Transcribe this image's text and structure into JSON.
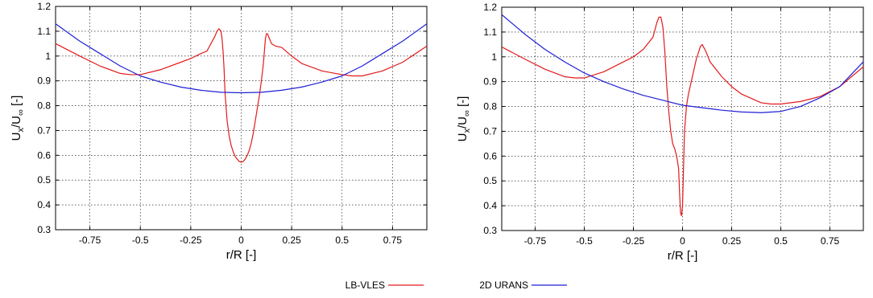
{
  "legend": [
    {
      "name": "LB-VLES",
      "color": "#e31a1c"
    },
    {
      "name": "2D URANS",
      "color": "#1f1fd6"
    }
  ],
  "chart_data": [
    {
      "type": "line",
      "xlabel": "r/R [-]",
      "ylabel_main": "U",
      "ylabel_sub1": "x",
      "ylabel_mid": "/U",
      "ylabel_sub2": "∞",
      "ylabel_tail": " [-]",
      "xlim": [
        -0.92,
        0.92
      ],
      "ylim": [
        0.3,
        1.2
      ],
      "xticks": [
        -0.75,
        -0.5,
        -0.25,
        0,
        0.25,
        0.5,
        0.75
      ],
      "xtick_labels": [
        "-0.75",
        "-0.5",
        "-0.25",
        "0",
        "0.25",
        "0.5",
        "0.75"
      ],
      "yticks": [
        0.3,
        0.4,
        0.5,
        0.6,
        0.7,
        0.8,
        0.9,
        1.0,
        1.1,
        1.2
      ],
      "ytick_labels": [
        "0.3",
        "0.4",
        "0.5",
        "0.6",
        "0.7",
        "0.8",
        "0.9",
        "1",
        "1.1",
        "1.2"
      ],
      "grid": true,
      "series": [
        {
          "name": "LB-VLES",
          "color": "#e31a1c",
          "x": [
            -0.92,
            -0.8,
            -0.7,
            -0.6,
            -0.55,
            -0.5,
            -0.4,
            -0.3,
            -0.25,
            -0.2,
            -0.17,
            -0.15,
            -0.13,
            -0.12,
            -0.11,
            -0.1,
            -0.095,
            -0.09,
            -0.085,
            -0.08,
            -0.07,
            -0.06,
            -0.05,
            -0.04,
            -0.03,
            -0.02,
            -0.01,
            0,
            0.01,
            0.02,
            0.03,
            0.04,
            0.05,
            0.06,
            0.07,
            0.08,
            0.09,
            0.1,
            0.11,
            0.115,
            0.12,
            0.125,
            0.13,
            0.14,
            0.15,
            0.17,
            0.2,
            0.25,
            0.3,
            0.4,
            0.5,
            0.55,
            0.6,
            0.7,
            0.8,
            0.92
          ],
          "y": [
            1.05,
            1.0,
            0.96,
            0.93,
            0.925,
            0.925,
            0.945,
            0.975,
            0.99,
            1.01,
            1.02,
            1.05,
            1.08,
            1.1,
            1.11,
            1.1,
            1.07,
            1.02,
            0.95,
            0.85,
            0.74,
            0.68,
            0.64,
            0.615,
            0.595,
            0.585,
            0.575,
            0.572,
            0.575,
            0.585,
            0.6,
            0.62,
            0.65,
            0.69,
            0.74,
            0.79,
            0.84,
            0.9,
            0.97,
            1.02,
            1.07,
            1.09,
            1.09,
            1.07,
            1.05,
            1.04,
            1.035,
            1.0,
            0.97,
            0.94,
            0.925,
            0.92,
            0.92,
            0.94,
            0.975,
            1.04
          ]
        },
        {
          "name": "2D URANS",
          "color": "#1f1fd6",
          "x": [
            -0.92,
            -0.8,
            -0.7,
            -0.6,
            -0.5,
            -0.4,
            -0.3,
            -0.2,
            -0.1,
            0,
            0.1,
            0.2,
            0.3,
            0.4,
            0.5,
            0.6,
            0.7,
            0.8,
            0.92
          ],
          "y": [
            1.13,
            1.06,
            1.01,
            0.96,
            0.92,
            0.895,
            0.875,
            0.862,
            0.854,
            0.852,
            0.854,
            0.862,
            0.875,
            0.895,
            0.92,
            0.96,
            1.01,
            1.06,
            1.13
          ]
        }
      ]
    },
    {
      "type": "line",
      "xlabel": "r/R [-]",
      "ylabel_main": "U",
      "ylabel_sub1": "x",
      "ylabel_mid": "/U",
      "ylabel_sub2": "∞",
      "ylabel_tail": " [-]",
      "xlim": [
        -0.92,
        0.92
      ],
      "ylim": [
        0.3,
        1.2
      ],
      "xticks": [
        -0.75,
        -0.5,
        -0.25,
        0,
        0.25,
        0.5,
        0.75
      ],
      "xtick_labels": [
        "-0.75",
        "-0.5",
        "-0.25",
        "0",
        "0.25",
        "0.5",
        "0.75"
      ],
      "yticks": [
        0.3,
        0.4,
        0.5,
        0.6,
        0.7,
        0.8,
        0.9,
        1.0,
        1.1,
        1.2
      ],
      "ytick_labels": [
        "0.3",
        "0.4",
        "0.5",
        "0.6",
        "0.7",
        "0.8",
        "0.9",
        "1",
        "1.1",
        "1.2"
      ],
      "grid": true,
      "series": [
        {
          "name": "LB-VLES",
          "color": "#e31a1c",
          "x": [
            -0.92,
            -0.8,
            -0.7,
            -0.6,
            -0.55,
            -0.5,
            -0.4,
            -0.3,
            -0.25,
            -0.2,
            -0.15,
            -0.13,
            -0.12,
            -0.11,
            -0.1,
            -0.09,
            -0.08,
            -0.07,
            -0.06,
            -0.05,
            -0.04,
            -0.03,
            -0.02,
            -0.015,
            -0.01,
            -0.005,
            0,
            0.005,
            0.01,
            0.02,
            0.03,
            0.05,
            0.07,
            0.09,
            0.1,
            0.12,
            0.14,
            0.2,
            0.25,
            0.3,
            0.4,
            0.45,
            0.5,
            0.6,
            0.7,
            0.8,
            0.92
          ],
          "y": [
            1.04,
            0.99,
            0.95,
            0.92,
            0.915,
            0.915,
            0.94,
            0.98,
            1.0,
            1.03,
            1.08,
            1.14,
            1.16,
            1.16,
            1.12,
            1.02,
            0.88,
            0.78,
            0.7,
            0.65,
            0.63,
            0.6,
            0.55,
            0.45,
            0.37,
            0.36,
            0.4,
            0.55,
            0.7,
            0.8,
            0.85,
            0.92,
            0.99,
            1.04,
            1.05,
            1.02,
            0.98,
            0.92,
            0.88,
            0.85,
            0.815,
            0.81,
            0.81,
            0.82,
            0.84,
            0.88,
            0.96
          ]
        },
        {
          "name": "2D URANS",
          "color": "#1f1fd6",
          "x": [
            -0.92,
            -0.8,
            -0.7,
            -0.6,
            -0.5,
            -0.4,
            -0.3,
            -0.2,
            -0.1,
            0,
            0.1,
            0.2,
            0.3,
            0.4,
            0.5,
            0.6,
            0.7,
            0.8,
            0.92
          ],
          "y": [
            1.17,
            1.09,
            1.03,
            0.98,
            0.935,
            0.9,
            0.87,
            0.845,
            0.825,
            0.805,
            0.795,
            0.785,
            0.778,
            0.775,
            0.78,
            0.8,
            0.835,
            0.88,
            0.98
          ]
        }
      ]
    }
  ]
}
